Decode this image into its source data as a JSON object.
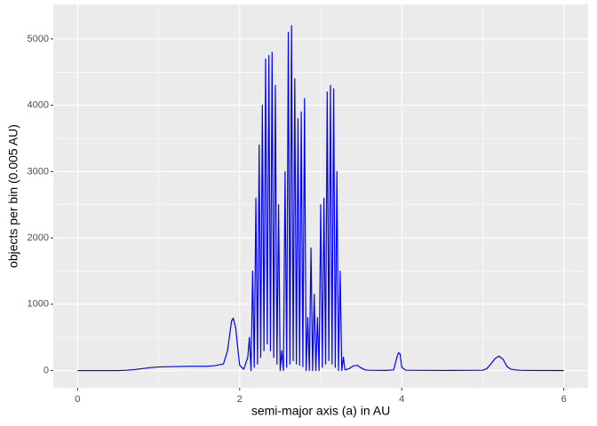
{
  "chart_data": {
    "type": "line",
    "xlabel": "semi-major axis (a) in AU",
    "ylabel": "objects per bin (0.005 AU)",
    "x": [
      0,
      0.5,
      0.6,
      0.7,
      0.8,
      0.9,
      1.0,
      1.2,
      1.4,
      1.6,
      1.7,
      1.8,
      1.85,
      1.9,
      1.92,
      1.95,
      1.98,
      2.0,
      2.05,
      2.1,
      2.12,
      2.14,
      2.16,
      2.18,
      2.2,
      2.22,
      2.24,
      2.26,
      2.28,
      2.3,
      2.32,
      2.34,
      2.36,
      2.38,
      2.4,
      2.42,
      2.44,
      2.46,
      2.48,
      2.5,
      2.52,
      2.54,
      2.56,
      2.58,
      2.6,
      2.62,
      2.64,
      2.66,
      2.68,
      2.7,
      2.72,
      2.74,
      2.76,
      2.78,
      2.8,
      2.82,
      2.84,
      2.86,
      2.88,
      2.9,
      2.92,
      2.94,
      2.96,
      2.98,
      3.0,
      3.02,
      3.04,
      3.06,
      3.08,
      3.1,
      3.12,
      3.14,
      3.16,
      3.18,
      3.2,
      3.22,
      3.24,
      3.26,
      3.28,
      3.3,
      3.35,
      3.4,
      3.45,
      3.5,
      3.55,
      3.6,
      3.8,
      3.9,
      3.94,
      3.96,
      3.98,
      4.0,
      4.05,
      4.5,
      5.0,
      5.05,
      5.1,
      5.15,
      5.2,
      5.25,
      5.3,
      5.35,
      5.45,
      5.6,
      6.0
    ],
    "values": [
      0,
      0,
      5,
      15,
      30,
      45,
      55,
      60,
      65,
      65,
      75,
      100,
      300,
      750,
      790,
      650,
      300,
      80,
      20,
      200,
      500,
      0,
      1500,
      50,
      2600,
      100,
      3400,
      200,
      4000,
      300,
      4700,
      400,
      4750,
      300,
      4800,
      200,
      4300,
      100,
      2500,
      0,
      300,
      0,
      3000,
      50,
      5100,
      100,
      5200,
      150,
      4400,
      100,
      3800,
      80,
      3900,
      60,
      4100,
      0,
      800,
      0,
      1850,
      0,
      1150,
      0,
      800,
      0,
      2500,
      50,
      2600,
      100,
      4200,
      150,
      4300,
      100,
      4250,
      50,
      3000,
      0,
      1500,
      0,
      200,
      10,
      30,
      70,
      80,
      40,
      10,
      5,
      3,
      10,
      200,
      270,
      250,
      50,
      5,
      2,
      5,
      30,
      100,
      180,
      220,
      170,
      60,
      20,
      5,
      2,
      1
    ],
    "color": "#0000ff",
    "xlim": [
      -0.3,
      6.3
    ],
    "xticks": [
      0,
      2,
      4,
      6
    ],
    "ylim": [
      -260,
      5520
    ],
    "yticks": [
      0,
      1000,
      2000,
      3000,
      4000,
      5000
    ],
    "grid": true
  }
}
